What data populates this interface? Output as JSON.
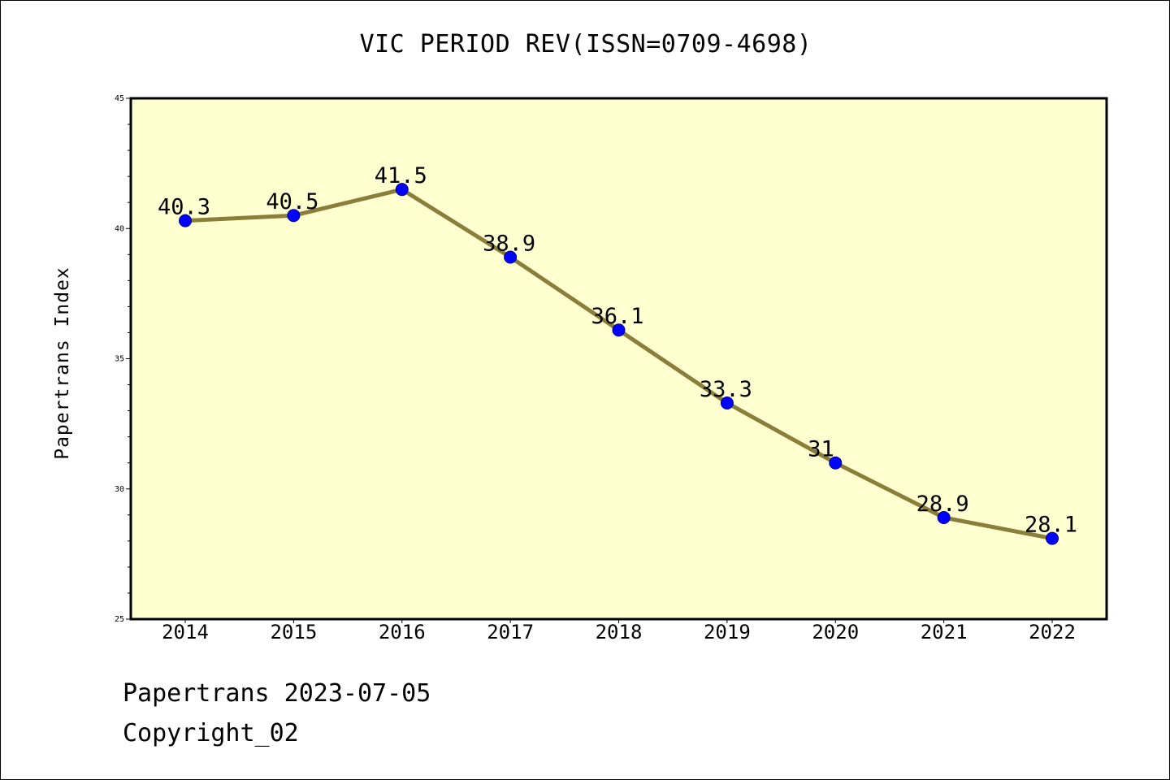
{
  "chart_data": {
    "type": "line",
    "title": "VIC PERIOD REV(ISSN=0709-4698)",
    "ylabel": "Papertrans Index",
    "xlabel": "",
    "categories": [
      "2014",
      "2015",
      "2016",
      "2017",
      "2018",
      "2019",
      "2020",
      "2021",
      "2022"
    ],
    "series": [
      {
        "values": [
          40.3,
          40.5,
          41.5,
          38.9,
          36.1,
          33.3,
          31,
          28.9,
          28.1
        ],
        "data_labels": [
          "40.3",
          "40.5",
          "41.5",
          "38.9",
          "36.1",
          "33.3",
          "31",
          "28.9",
          "28.1"
        ]
      }
    ],
    "ylim": [
      25,
      45
    ],
    "yticks": [
      "25",
      "30",
      "35",
      "40",
      "45"
    ],
    "grid": false,
    "colors": {
      "plot_background": "#FFFFD0",
      "line": "#8B7E3A",
      "marker": "#0000FF",
      "axes": "#000000"
    }
  },
  "footer": {
    "date_line": "Papertrans 2023-07-05",
    "copyright": "Copyright_02"
  }
}
